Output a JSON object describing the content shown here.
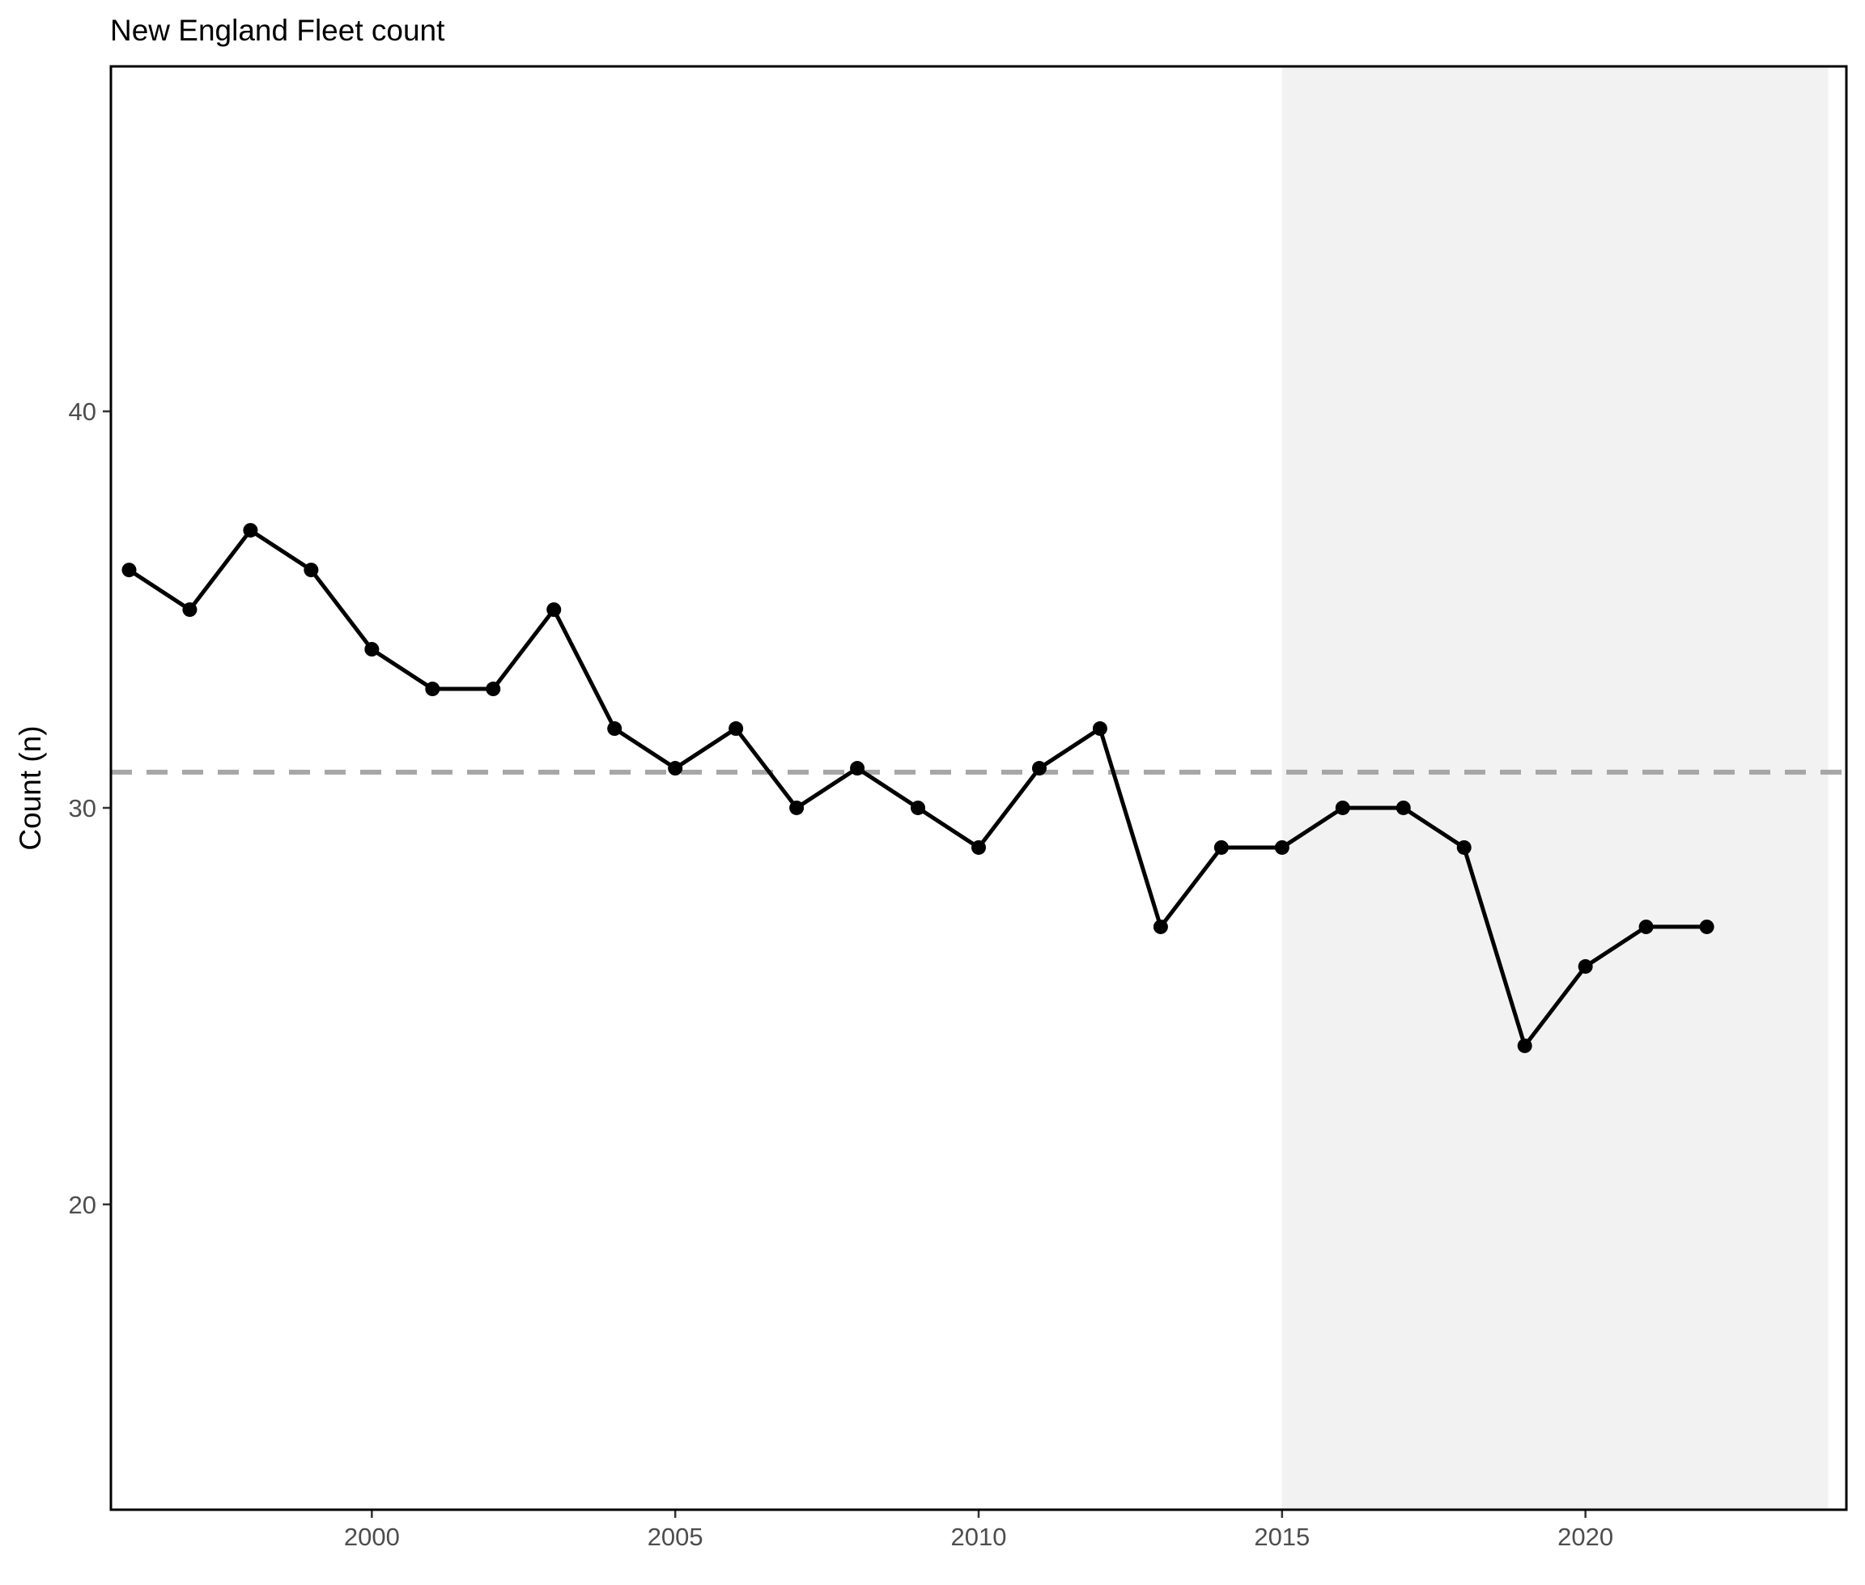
{
  "chart_data": {
    "type": "line",
    "title": "New England Fleet count",
    "xlabel": "",
    "ylabel": "Count (n)",
    "xlim": [
      1995.7,
      2024.3
    ],
    "ylim": [
      12.3,
      48.7
    ],
    "x_ticks": [
      2000,
      2005,
      2010,
      2015,
      2020
    ],
    "y_ticks": [
      20,
      30,
      40
    ],
    "grid": false,
    "legend": "none",
    "series": [
      {
        "x": [
          1996,
          1997,
          1998,
          1999,
          2000,
          2001,
          2002,
          2003,
          2004,
          2005,
          2006,
          2007,
          2008,
          2009,
          2010,
          2011,
          2012,
          2013,
          2014,
          2015,
          2016,
          2017,
          2018,
          2019,
          2020,
          2021,
          2022
        ],
        "values": [
          36,
          35,
          37,
          36,
          34,
          33,
          33,
          35,
          32,
          31,
          32,
          30,
          31,
          30,
          29,
          31,
          32,
          27,
          29,
          29,
          30,
          30,
          29,
          24,
          26,
          27,
          27
        ],
        "color": "#000000"
      }
    ],
    "reference_line": {
      "y": 30.9,
      "style": "dashed",
      "color": "#a6a6a6"
    },
    "shaded_region": {
      "x_start": 2015,
      "x_end": 2024,
      "color": "#f2f2f2"
    }
  }
}
